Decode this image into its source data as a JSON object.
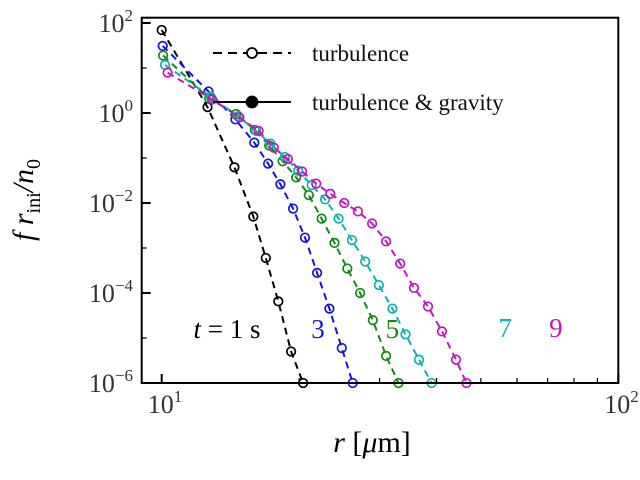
{
  "chart_data": {
    "type": "line",
    "title": "",
    "xlabel": "r [μm]",
    "ylabel": "f r_ini / n_0",
    "x_scale": "log",
    "y_scale": "log",
    "xlim": [
      9.0,
      100
    ],
    "ylim": [
      1e-06,
      130
    ],
    "x_major_ticks": [
      10,
      100
    ],
    "x_major_tick_exponents": [
      1,
      2
    ],
    "x_minor_ticks": [
      20,
      30,
      40,
      50,
      60,
      70,
      80,
      90
    ],
    "y_major_tick_exponents": [
      2,
      0,
      -2,
      -4,
      -6
    ],
    "y_minor_tick_exponents": [
      1,
      -1,
      -3,
      -5
    ],
    "grid": false,
    "legend_position": "upper-center-inside",
    "legend": [
      {
        "label": "turbulence",
        "line": "dashed",
        "marker": "open-circle",
        "color": "#000000"
      },
      {
        "label": "turbulence & gravity",
        "line": "solid",
        "marker": "filled-circle",
        "color": "#000000"
      }
    ],
    "xlabel_tokens": [
      {
        "text": "r",
        "italic": true
      },
      {
        "text": " [",
        "italic": false
      },
      {
        "text": "μ",
        "italic": true
      },
      {
        "text": "m]",
        "italic": false
      }
    ],
    "ylabel_tokens": [
      {
        "text": "f r",
        "italic": true
      },
      {
        "text": "ini",
        "sub": true
      },
      {
        "text": "/n",
        "italic": true
      },
      {
        "text": "0",
        "sub": true
      }
    ],
    "series": [
      {
        "name": "t = 1 s (turbulence)",
        "color": "#000000",
        "style": "dashed",
        "marker": "open-circle",
        "points": [
          [
            10.0,
            70
          ],
          [
            12.6,
            1.35
          ],
          [
            14.43,
            0.062
          ],
          [
            15.87,
            0.005
          ],
          [
            16.9,
            0.0006
          ],
          [
            18.0,
            6.5e-05
          ],
          [
            19.2,
            5e-06
          ],
          [
            20.4,
            1e-06
          ]
        ]
      },
      {
        "name": "t = 3 s (turbulence)",
        "color": "#1515dd",
        "style": "dashed",
        "marker": "open-circle",
        "points": [
          [
            10.05,
            31
          ],
          [
            12.66,
            3.0
          ],
          [
            14.5,
            0.72
          ],
          [
            15.95,
            0.22
          ],
          [
            17.1,
            0.075
          ],
          [
            18.2,
            0.026
          ],
          [
            19.4,
            0.0075
          ],
          [
            20.6,
            0.0017
          ],
          [
            21.9,
            0.00028
          ],
          [
            23.3,
            4.5e-05
          ],
          [
            24.8,
            6e-06
          ],
          [
            26.2,
            1e-06
          ]
        ]
      },
      {
        "name": "t = 5 s (turbulence)",
        "color": "#108a10",
        "style": "dashed",
        "marker": "open-circle",
        "points": [
          [
            10.07,
            19
          ],
          [
            12.7,
            2.1
          ],
          [
            14.55,
            0.95
          ],
          [
            16.0,
            0.42
          ],
          [
            17.2,
            0.19
          ],
          [
            18.4,
            0.085
          ],
          [
            19.7,
            0.037
          ],
          [
            21.0,
            0.015
          ],
          [
            22.4,
            0.0045
          ],
          [
            23.9,
            0.0013
          ],
          [
            25.5,
            0.00035
          ],
          [
            27.2,
            0.0001
          ],
          [
            29.0,
            2.5e-05
          ],
          [
            31.0,
            4e-06
          ],
          [
            33.0,
            1e-06
          ]
        ]
      },
      {
        "name": "t = 7 s (turbulence)",
        "color": "#0cb3b3",
        "style": "dashed",
        "marker": "open-circle",
        "points": [
          [
            10.17,
            11.7
          ],
          [
            12.8,
            2.3
          ],
          [
            14.7,
            0.85
          ],
          [
            16.1,
            0.4
          ],
          [
            17.3,
            0.21
          ],
          [
            18.6,
            0.105
          ],
          [
            19.9,
            0.052
          ],
          [
            21.3,
            0.025
          ],
          [
            22.8,
            0.012
          ],
          [
            24.4,
            0.0045
          ],
          [
            26.1,
            0.0015
          ],
          [
            27.9,
            0.0005
          ],
          [
            29.9,
            0.00015
          ],
          [
            32.0,
            4.5e-05
          ],
          [
            34.2,
            1.2e-05
          ],
          [
            36.6,
            3.3e-06
          ],
          [
            39.0,
            1e-06
          ]
        ]
      },
      {
        "name": "t = 9 s (turbulence)",
        "color": "#c316c3",
        "style": "dashed",
        "marker": "open-circle",
        "points": [
          [
            10.3,
            7.9
          ],
          [
            12.9,
            2.0
          ],
          [
            14.8,
            0.8
          ],
          [
            16.3,
            0.4
          ],
          [
            17.6,
            0.17
          ],
          [
            18.9,
            0.095
          ],
          [
            20.3,
            0.05
          ],
          [
            21.8,
            0.027
          ],
          [
            23.4,
            0.016
          ],
          [
            25.1,
            0.01
          ],
          [
            26.9,
            0.0065
          ],
          [
            28.9,
            0.0035
          ],
          [
            31.0,
            0.0014
          ],
          [
            33.3,
            0.00045
          ],
          [
            35.7,
            0.00013
          ],
          [
            38.3,
            5e-05
          ],
          [
            41.1,
            1.4e-05
          ],
          [
            44.1,
            3.3e-06
          ],
          [
            46.5,
            1e-06
          ]
        ]
      }
    ],
    "annotations": [
      {
        "name": "time-label-1s",
        "tokens": [
          {
            "text": "t",
            "italic": true
          },
          {
            "text": " = 1 s",
            "italic": false
          }
        ],
        "color": "#000000",
        "r": 13.9,
        "v": 1e-05
      },
      {
        "name": "time-label-3s",
        "tokens": [
          {
            "text": "3",
            "italic": false
          }
        ],
        "color": "#1515dd",
        "r": 22.0,
        "v": 1e-05
      },
      {
        "name": "time-label-5s",
        "tokens": [
          {
            "text": "5",
            "italic": false
          }
        ],
        "color": "#108a10",
        "r": 32.0,
        "v": 1e-05
      },
      {
        "name": "time-label-7s",
        "tokens": [
          {
            "text": "7",
            "italic": false
          }
        ],
        "color": "#0cb3b3",
        "r": 56.5,
        "v": 1.05e-05
      },
      {
        "name": "time-label-9s",
        "tokens": [
          {
            "text": "9",
            "italic": false
          }
        ],
        "color": "#c316c3",
        "r": 73.0,
        "v": 1.05e-05
      }
    ],
    "axis_color": "#000000",
    "background_color": "#ffffff"
  }
}
